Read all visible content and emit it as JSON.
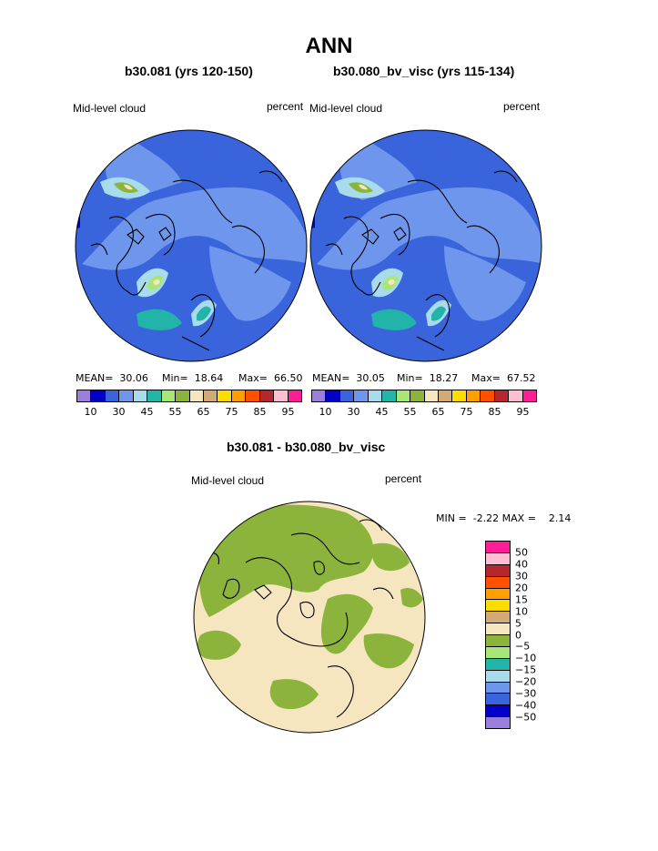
{
  "title": "ANN",
  "panels": [
    {
      "subtitle": "b30.081 (yrs 120-150)",
      "field_label": "Mid-level cloud",
      "units": "percent",
      "stats": {
        "mean_label": "MEAN=",
        "mean": "30.06",
        "min_label": "Min=",
        "min": "18.64",
        "max_label": "Max=",
        "max": "66.50"
      }
    },
    {
      "subtitle": "b30.080_bv_visc (yrs 115-134)",
      "field_label": "Mid-level cloud",
      "units": "percent",
      "stats": {
        "mean_label": "MEAN=",
        "mean": "30.05",
        "min_label": "Min=",
        "min": "18.27",
        "max_label": "Max=",
        "max": "67.52"
      }
    }
  ],
  "diff_panel": {
    "subtitle": "b30.081 - b30.080_bv_visc",
    "field_label": "Mid-level cloud",
    "units": "percent",
    "min_label": "MIN =",
    "min": "-2.22",
    "max_label": "MAX =",
    "max": "2.14"
  },
  "abs_colorbar": {
    "colors": [
      "#9b7ddc",
      "#0000c8",
      "#3a64dc",
      "#6e96ec",
      "#a8dcec",
      "#22b4a8",
      "#a8e678",
      "#8cb43c",
      "#f5e6c0",
      "#d2aa78",
      "#ffdc00",
      "#ffa000",
      "#ff5000",
      "#b4282d",
      "#ffbed2",
      "#ff1e96"
    ],
    "tick_labels": [
      "10",
      "30",
      "45",
      "55",
      "65",
      "75",
      "85",
      "95"
    ]
  },
  "diff_colorbar": {
    "colors": [
      "#ff1e96",
      "#ffbed2",
      "#b4282d",
      "#ff5000",
      "#ffa000",
      "#ffdc00",
      "#d2aa78",
      "#f5e6c0",
      "#8cb43c",
      "#a8e678",
      "#22b4a8",
      "#a8dcec",
      "#6e96ec",
      "#3a64dc",
      "#0000c8",
      "#9b7ddc"
    ],
    "tick_labels": [
      "50",
      "40",
      "30",
      "20",
      "15",
      "10",
      "5",
      "0",
      "−5",
      "−10",
      "−15",
      "−20",
      "−30",
      "−40",
      "−50"
    ]
  },
  "map_colors": {
    "ocean": "#3a64dc",
    "light_blue": "#6e96ec",
    "pale_cyan": "#a8dcec",
    "teal": "#22b4a8",
    "green": "#a8e678",
    "olive": "#8cb43c",
    "tan": "#f5e6c0",
    "dark": "#0000c8"
  }
}
